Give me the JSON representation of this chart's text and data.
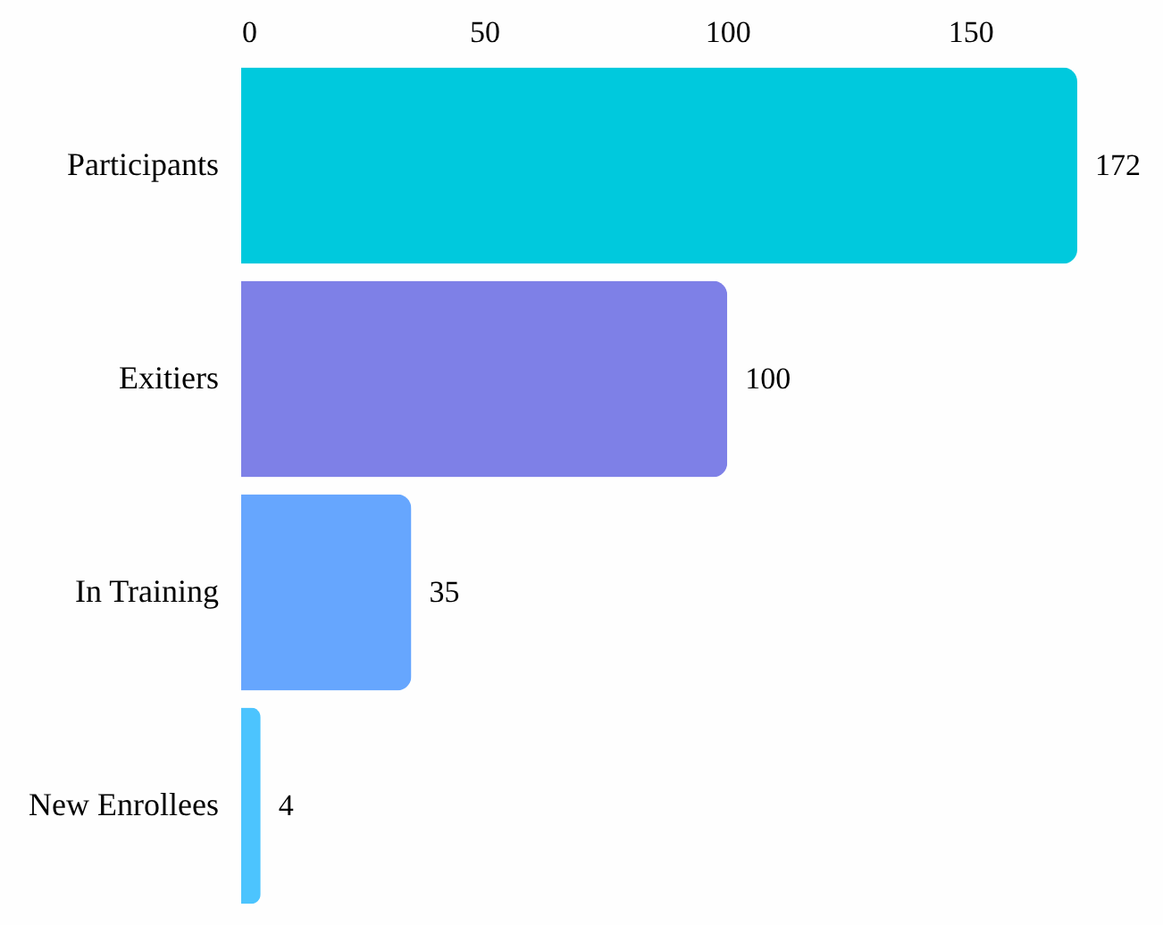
{
  "chart_data": {
    "type": "bar",
    "orientation": "horizontal",
    "categories": [
      "Participants",
      "Exitiers",
      "In Training",
      "New Enrollees"
    ],
    "values": [
      172,
      100,
      35,
      4
    ],
    "colors": [
      "#00c9dd",
      "#7e80e7",
      "#66a6fe",
      "#4cc4fe"
    ],
    "xlim": [
      0,
      172
    ],
    "xticks": [
      0,
      50,
      100,
      150
    ],
    "data_labels": true
  }
}
